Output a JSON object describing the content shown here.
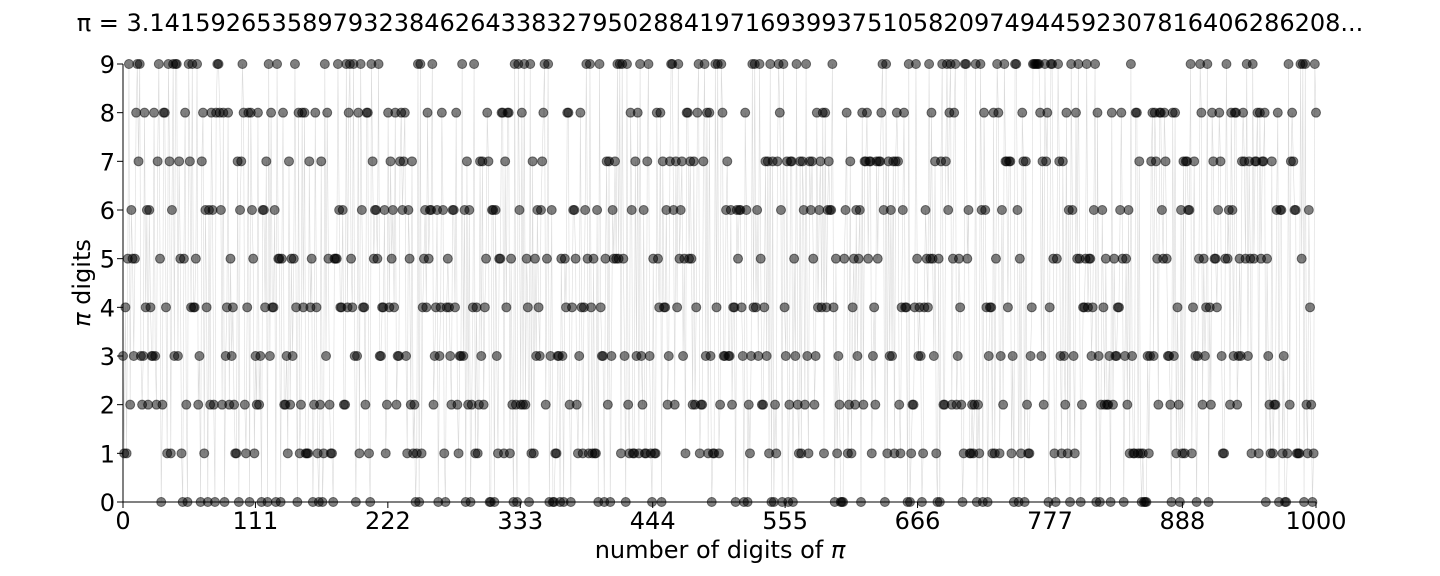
{
  "chart_data": {
    "type": "scatter",
    "title": "π = 3.14159265358979323846264338327950288419716939937510582097494459230781640628620 8...",
    "title_display": "π = 3.1415926535897932384626433832795028841971693993751058209749445923078164062862​08...",
    "xlabel_prefix": "number of digits of ",
    "xlabel_symbol": "π",
    "ylabel_symbol": "π",
    "ylabel_suffix": " digits",
    "x_ticks": [
      0,
      111,
      222,
      333,
      444,
      555,
      666,
      777,
      888,
      1000
    ],
    "y_ticks": [
      0,
      1,
      2,
      3,
      4,
      5,
      6,
      7,
      8,
      9
    ],
    "xlim": [
      0,
      1000
    ],
    "ylim": [
      0,
      9
    ],
    "grid": false,
    "connecting_lines": true,
    "marker_color": "#000000",
    "marker_alpha": 0.5,
    "line_color": "#999999",
    "digits": "3141592653589793238462643383279502884197169399375105820974944592307816406286208998628034825342117067982148086513282306647093844609550582231725359408128481117450284102701938521105559644622948954930381964428810975665933446128475648233786783165271201909145648566923460348610454326648213393607260249141273724587006606315588174881520920962829254091715364367892590360011330530548820466521384146951941511609433057270365759591953092186117381932611793105118548074462379962749567351885752724891227938183011949129833673362440656643086021394946395224737190702179860943702770539217176293176752384674818467669405132000568127145263560827785771342757789609173637178721468440901224953430146549585371050792279689258923542019956112129021960864034418159813629774771309960518707211349999998372978049951059731732816096318595024459455346908302642522308253344685035261931188171010003137838752886587533208381420617177669147303598253490428755468731159562863882353787593751957781857780532171226806613001927876611195909216420198"
  }
}
